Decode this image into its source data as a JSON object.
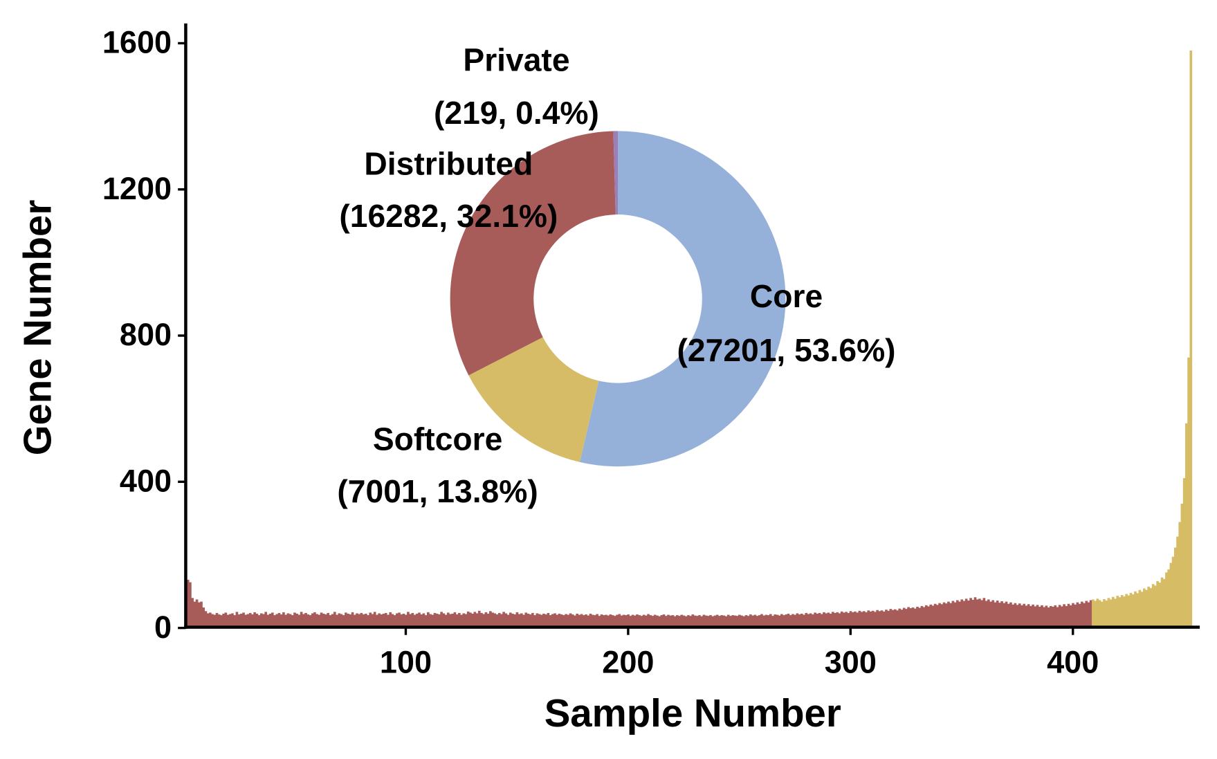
{
  "chart_data": [
    {
      "type": "bar",
      "xlabel": "Sample Number",
      "ylabel": "Gene Number",
      "xlim": [
        0,
        456
      ],
      "ylim": [
        0,
        1650
      ],
      "xticks": [
        100,
        200,
        300,
        400
      ],
      "yticks": [
        0,
        400,
        800,
        1200,
        1600
      ],
      "series": [
        {
          "color": "#a85c5a",
          "x": [
            1,
            2,
            3,
            4,
            5,
            6,
            7,
            8,
            9,
            10,
            11,
            12,
            13,
            14,
            15,
            16,
            17,
            18,
            19,
            20,
            21,
            22,
            23,
            24,
            25,
            26,
            27,
            28,
            29,
            30,
            31,
            32,
            33,
            34,
            35,
            36,
            37,
            38,
            39,
            40,
            41,
            42,
            43,
            44,
            45,
            46,
            47,
            48,
            49,
            50,
            51,
            52,
            53,
            54,
            55,
            56,
            57,
            58,
            59,
            60,
            61,
            62,
            63,
            64,
            65,
            66,
            67,
            68,
            69,
            70,
            71,
            72,
            73,
            74,
            75,
            76,
            77,
            78,
            79,
            80,
            81,
            82,
            83,
            84,
            85,
            86,
            87,
            88,
            89,
            90,
            91,
            92,
            93,
            94,
            95,
            96,
            97,
            98,
            99,
            100,
            101,
            102,
            103,
            104,
            105,
            106,
            107,
            108,
            109,
            110,
            111,
            112,
            113,
            114,
            115,
            116,
            117,
            118,
            119,
            120,
            121,
            122,
            123,
            124,
            125,
            126,
            127,
            128,
            129,
            130,
            131,
            132,
            133,
            134,
            135,
            136,
            137,
            138,
            139,
            140,
            141,
            142,
            143,
            144,
            145,
            146,
            147,
            148,
            149,
            150,
            151,
            152,
            153,
            154,
            155,
            156,
            157,
            158,
            159,
            160,
            161,
            162,
            163,
            164,
            165,
            166,
            167,
            168,
            169,
            170,
            171,
            172,
            173,
            174,
            175,
            176,
            177,
            178,
            179,
            180,
            181,
            182,
            183,
            184,
            185,
            186,
            187,
            188,
            189,
            190,
            191,
            192,
            193,
            194,
            195,
            196,
            197,
            198,
            199,
            200,
            201,
            202,
            203,
            204,
            205,
            206,
            207,
            208,
            209,
            210,
            211,
            212,
            213,
            214,
            215,
            216,
            217,
            218,
            219,
            220,
            221,
            222,
            223,
            224,
            225,
            226,
            227,
            228,
            229,
            230,
            231,
            232,
            233,
            234,
            235,
            236,
            237,
            238,
            239,
            240,
            241,
            242,
            243,
            244,
            245,
            246,
            247,
            248,
            249,
            250,
            251,
            252,
            253,
            254,
            255,
            256,
            257,
            258,
            259,
            260,
            261,
            262,
            263,
            264,
            265,
            266,
            267,
            268,
            269,
            270,
            271,
            272,
            273,
            274,
            275,
            276,
            277,
            278,
            279,
            280,
            281,
            282,
            283,
            284,
            285,
            286,
            287,
            288,
            289,
            290,
            291,
            292,
            293,
            294,
            295,
            296,
            297,
            298,
            299,
            300,
            301,
            302,
            303,
            304,
            305,
            306,
            307,
            308,
            309,
            310,
            311,
            312,
            313,
            314,
            315,
            316,
            317,
            318,
            319,
            320,
            321,
            322,
            323,
            324,
            325,
            326,
            327,
            328,
            329,
            330,
            331,
            332,
            333,
            334,
            335,
            336,
            337,
            338,
            339,
            340,
            341,
            342,
            343,
            344,
            345,
            346,
            347,
            348,
            349,
            350,
            351,
            352,
            353,
            354,
            355,
            356,
            357,
            358,
            359,
            360,
            361,
            362,
            363,
            364,
            365,
            366,
            367,
            368,
            369,
            370,
            371,
            372,
            373,
            374,
            375,
            376,
            377,
            378,
            379,
            380,
            381,
            382,
            383,
            384,
            385,
            386,
            387,
            388,
            389,
            390,
            391,
            392,
            393,
            394,
            395,
            396,
            397,
            398,
            399,
            400,
            401,
            402,
            403,
            404,
            405,
            406,
            407,
            408
          ],
          "values": [
            140,
            132,
            125,
            82,
            72,
            78,
            70,
            72,
            56,
            46,
            40,
            42,
            38,
            36,
            41,
            37,
            35,
            39,
            42,
            36,
            38,
            40,
            35,
            44,
            37,
            39,
            42,
            36,
            38,
            41,
            37,
            43,
            39,
            35,
            40,
            38,
            44,
            36,
            39,
            42,
            35,
            38,
            41,
            37,
            43,
            36,
            40,
            38,
            35,
            42,
            39,
            36,
            44,
            38,
            41,
            37,
            35,
            40,
            43,
            38,
            36,
            42,
            39,
            37,
            41,
            35,
            38,
            44,
            36,
            40,
            38,
            35,
            42,
            39,
            37,
            43,
            36,
            40,
            38,
            41,
            37,
            39,
            35,
            42,
            38,
            44,
            36,
            40,
            37,
            39,
            41,
            36,
            43,
            38,
            35,
            40,
            42,
            37,
            39,
            36,
            44,
            38,
            41,
            36,
            39,
            42,
            37,
            40,
            35,
            43,
            38,
            36,
            41,
            39,
            37,
            44,
            40,
            36,
            42,
            38,
            39,
            43,
            37,
            41,
            36,
            40,
            38,
            45,
            42,
            39,
            44,
            40,
            47,
            41,
            38,
            43,
            39,
            46,
            42,
            40,
            37,
            41,
            38,
            44,
            40,
            36,
            42,
            39,
            37,
            43,
            38,
            40,
            36,
            42,
            39,
            37,
            41,
            35,
            40,
            38,
            36,
            39,
            37,
            41,
            35,
            38,
            40,
            36,
            39,
            37,
            35,
            38,
            36,
            40,
            37,
            34,
            39,
            36,
            38,
            35,
            37,
            34,
            39,
            36,
            35,
            38,
            33,
            37,
            35,
            36,
            34,
            37,
            35,
            33,
            36,
            38,
            34,
            36,
            35,
            37,
            33,
            36,
            34,
            37,
            35,
            33,
            36,
            34,
            38,
            35,
            33,
            36,
            34,
            32,
            35,
            37,
            33,
            36,
            34,
            35,
            32,
            35,
            33,
            36,
            34,
            32,
            35,
            33,
            37,
            34,
            33,
            35,
            32,
            36,
            34,
            33,
            35,
            32,
            34,
            36,
            33,
            35,
            34,
            32,
            36,
            33,
            35,
            34,
            33,
            36,
            34,
            32,
            35,
            33,
            37,
            34,
            36,
            33,
            35,
            38,
            34,
            36,
            35,
            38,
            33,
            37,
            36,
            34,
            38,
            35,
            37,
            39,
            35,
            38,
            36,
            40,
            37,
            39,
            36,
            41,
            38,
            40,
            37,
            42,
            39,
            41,
            38,
            43,
            40,
            42,
            39,
            44,
            41,
            43,
            40,
            45,
            42,
            44,
            41,
            46,
            43,
            45,
            42,
            47,
            44,
            46,
            43,
            48,
            45,
            47,
            44,
            49,
            46,
            48,
            45,
            50,
            47,
            52,
            49,
            51,
            48,
            53,
            50,
            55,
            52,
            57,
            54,
            56,
            53,
            58,
            55,
            60,
            57,
            62,
            59,
            64,
            61,
            66,
            63,
            68,
            65,
            70,
            67,
            72,
            68,
            74,
            70,
            76,
            72,
            78,
            74,
            80,
            75,
            82,
            77,
            84,
            78,
            80,
            76,
            82,
            74,
            78,
            72,
            76,
            70,
            75,
            69,
            73,
            68,
            72,
            66,
            70,
            64,
            68,
            63,
            67,
            62,
            66,
            61,
            65,
            60,
            64,
            59,
            63,
            58,
            62,
            57,
            61,
            56,
            60,
            58,
            62,
            57,
            63,
            59,
            65,
            60,
            66,
            62,
            68,
            64,
            70,
            66,
            72,
            68,
            74,
            70,
            76
          ]
        },
        {
          "color": "#d6bc65",
          "x": [
            409,
            410,
            411,
            412,
            413,
            414,
            415,
            416,
            417,
            418,
            419,
            420,
            421,
            422,
            423,
            424,
            425,
            426,
            427,
            428,
            429,
            430,
            431,
            432,
            433,
            434,
            435,
            436,
            437,
            438,
            439,
            440,
            441,
            442,
            443,
            444,
            445,
            446,
            447,
            448,
            449,
            450,
            451,
            452,
            453
          ],
          "values": [
            78,
            74,
            80,
            76,
            72,
            79,
            75,
            82,
            78,
            85,
            80,
            88,
            84,
            90,
            86,
            93,
            89,
            96,
            92,
            100,
            95,
            104,
            99,
            108,
            104,
            113,
            109,
            120,
            116,
            128,
            124,
            138,
            134,
            152,
            160,
            178,
            195,
            220,
            250,
            290,
            340,
            410,
            560,
            740,
            1580
          ]
        }
      ]
    },
    {
      "type": "donut",
      "labels": [
        "Core",
        "Softcore",
        "Distributed",
        "Private"
      ],
      "values": [
        27201,
        7001,
        16282,
        219
      ],
      "value_labels": [
        "(27201, 53.6%)",
        "(7001, 13.8%)",
        "(16282, 32.1%)",
        "(219, 0.4%)"
      ],
      "colors": [
        "#95b1d9",
        "#d7bc67",
        "#a85c5a",
        "#9c7fb7"
      ]
    }
  ]
}
